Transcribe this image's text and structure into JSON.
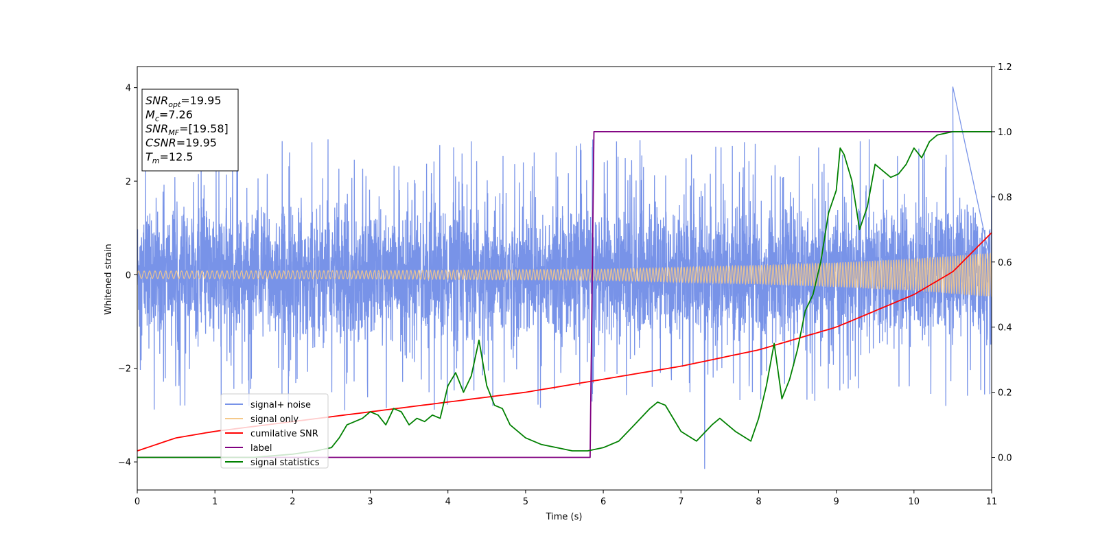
{
  "chart_data": {
    "type": "line",
    "title": "",
    "xlabel": "Time (s)",
    "ylabel": "Whitened strain",
    "ylabel_right": "",
    "xlim": [
      0,
      11
    ],
    "ylim": [
      -4.6,
      4.45
    ],
    "ylim_right": [
      -0.1,
      1.2
    ],
    "xticks": [
      "0",
      "1",
      "2",
      "3",
      "4",
      "5",
      "6",
      "7",
      "8",
      "9",
      "10",
      "11"
    ],
    "yticks": [
      "4",
      "2",
      "0",
      "−2",
      "−4"
    ],
    "yticks_right": [
      "1.2",
      "1.0",
      "0.8",
      "0.6",
      "0.4",
      "0.2",
      "0.0"
    ],
    "grid": false,
    "legend_position": "lower-left",
    "info_box": {
      "position": "upper-left",
      "lines": [
        {
          "sym": "SNR",
          "sub": "opt",
          "val": "=19.95"
        },
        {
          "sym": "M",
          "sub": "c",
          "val": "=7.26"
        },
        {
          "sym": "SNR",
          "sub": "MF",
          "val": "=[19.58]"
        },
        {
          "sym": "CSNR",
          "sub": "",
          "val": "=19.95"
        },
        {
          "sym": "T",
          "sub": "m",
          "val": "=12.5"
        }
      ]
    },
    "series": [
      {
        "name": "signal+ noise",
        "axis": "left",
        "color": "#7893e8",
        "kind": "noise",
        "description_values": {
          "std": 0.85,
          "typical_peak": 2.3,
          "max_peak": [
            10.5,
            4.02
          ],
          "min_peak": [
            7.3,
            -4.15
          ]
        }
      },
      {
        "name": "signal only",
        "axis": "left",
        "color": "#f5c98a",
        "kind": "chirp",
        "amplitude_points": [
          [
            0,
            0.08
          ],
          [
            3,
            0.09
          ],
          [
            6,
            0.12
          ],
          [
            8,
            0.2
          ],
          [
            9,
            0.26
          ],
          [
            10,
            0.34
          ],
          [
            11,
            0.47
          ]
        ]
      },
      {
        "name": "cumilative SNR",
        "axis": "right",
        "color": "#ff0000",
        "x": [
          0,
          0.5,
          1,
          2,
          3,
          4,
          5,
          6,
          7,
          8,
          9,
          10,
          10.5,
          11
        ],
        "y": [
          0.02,
          0.06,
          0.08,
          0.11,
          0.14,
          0.17,
          0.2,
          0.24,
          0.28,
          0.33,
          0.4,
          0.5,
          0.57,
          0.69
        ]
      },
      {
        "name": "label",
        "axis": "right",
        "color": "#800080",
        "x": [
          0,
          5.83,
          5.88,
          11
        ],
        "y": [
          0.0,
          0.0,
          1.0,
          1.0
        ]
      },
      {
        "name": "signal statistics",
        "axis": "right",
        "color": "#008000",
        "x": [
          0,
          0.5,
          1,
          1.5,
          2,
          2.3,
          2.5,
          2.6,
          2.7,
          2.8,
          2.9,
          3.0,
          3.1,
          3.2,
          3.3,
          3.4,
          3.5,
          3.6,
          3.7,
          3.8,
          3.9,
          4.0,
          4.1,
          4.2,
          4.3,
          4.4,
          4.5,
          4.6,
          4.7,
          4.8,
          4.9,
          5.0,
          5.2,
          5.4,
          5.6,
          5.8,
          6.0,
          6.2,
          6.4,
          6.6,
          6.7,
          6.8,
          6.9,
          7.0,
          7.2,
          7.4,
          7.5,
          7.6,
          7.7,
          7.9,
          8.0,
          8.1,
          8.2,
          8.3,
          8.4,
          8.5,
          8.6,
          8.7,
          8.8,
          8.9,
          9.0,
          9.05,
          9.1,
          9.2,
          9.3,
          9.4,
          9.5,
          9.6,
          9.7,
          9.8,
          9.9,
          10.0,
          10.1,
          10.2,
          10.3,
          10.5,
          11
        ],
        "y": [
          0.0,
          0.0,
          0.0,
          0.0,
          0.01,
          0.02,
          0.03,
          0.06,
          0.1,
          0.11,
          0.12,
          0.14,
          0.13,
          0.1,
          0.15,
          0.14,
          0.1,
          0.12,
          0.11,
          0.13,
          0.12,
          0.22,
          0.26,
          0.2,
          0.25,
          0.36,
          0.22,
          0.16,
          0.15,
          0.1,
          0.08,
          0.06,
          0.04,
          0.03,
          0.02,
          0.02,
          0.03,
          0.05,
          0.1,
          0.15,
          0.17,
          0.16,
          0.12,
          0.08,
          0.05,
          0.1,
          0.12,
          0.1,
          0.08,
          0.05,
          0.12,
          0.22,
          0.35,
          0.18,
          0.24,
          0.33,
          0.45,
          0.5,
          0.6,
          0.75,
          0.82,
          0.95,
          0.93,
          0.85,
          0.7,
          0.77,
          0.9,
          0.88,
          0.86,
          0.87,
          0.9,
          0.95,
          0.92,
          0.97,
          0.99,
          1.0,
          1.0
        ]
      }
    ]
  }
}
